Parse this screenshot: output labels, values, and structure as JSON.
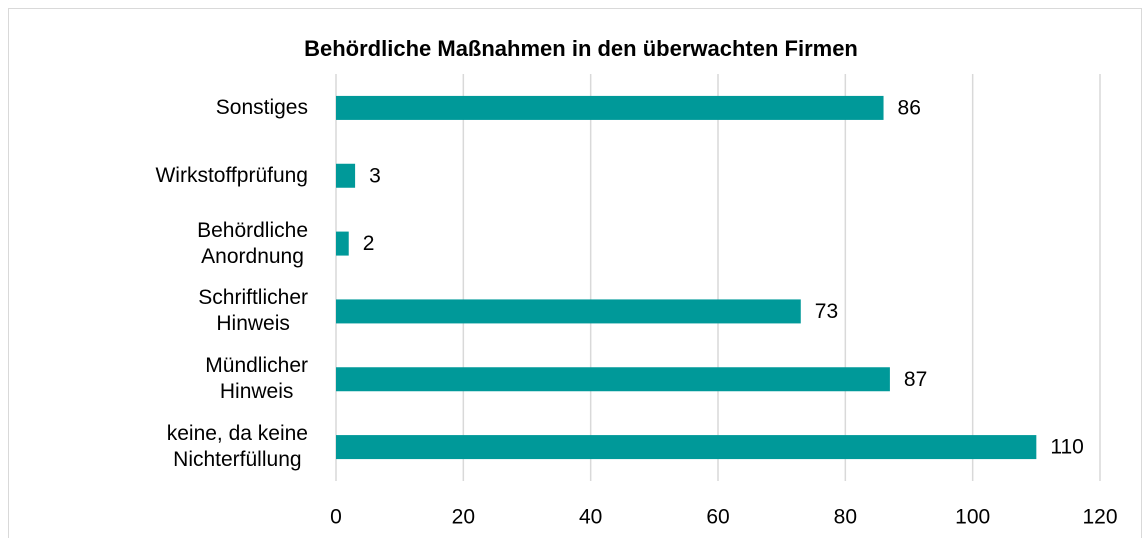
{
  "chart_data": {
    "type": "barh",
    "title": "Behördliche Maßnahmen in den überwachten Firmen",
    "categories": [
      "Sonstiges",
      "Wirkstoffprüfung",
      "Behördliche\nAnordnung",
      "Schriftlicher\nHinweis",
      "Mündlicher\nHinweis",
      "keine, da keine\nNichterfüllung"
    ],
    "values": [
      86,
      3,
      2,
      73,
      87,
      110
    ],
    "color": "#009999",
    "xlim": [
      0,
      120
    ],
    "xticks": [
      0,
      20,
      40,
      60,
      80,
      100,
      120
    ],
    "grid": true
  }
}
